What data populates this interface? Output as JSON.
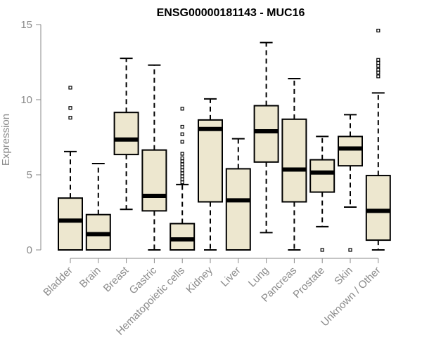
{
  "chart_data": {
    "type": "box",
    "title": "ENSG00000181143 - MUC16",
    "xlabel": "",
    "ylabel": "Expression",
    "ylim": [
      0,
      15
    ],
    "yticks": [
      0,
      5,
      10,
      15
    ],
    "grid": false,
    "box_fill": "#ede7cf",
    "categories": [
      "Bladder",
      "Brain",
      "Breast",
      "Gastric",
      "Hematopoietic cells",
      "Kidney",
      "Liver",
      "Lung",
      "Pancreas",
      "Prostate",
      "Skin",
      "Unknown / Other"
    ],
    "boxes": [
      {
        "min": 0.0,
        "q1": 0.0,
        "median": 1.95,
        "q3": 3.45,
        "max": 6.55,
        "outliers": [
          8.8,
          9.45,
          10.8
        ]
      },
      {
        "min": 0.0,
        "q1": 0.0,
        "median": 1.05,
        "q3": 2.35,
        "max": 5.75,
        "outliers": []
      },
      {
        "min": 2.7,
        "q1": 6.35,
        "median": 7.35,
        "q3": 9.15,
        "max": 12.75,
        "outliers": []
      },
      {
        "min": 0.0,
        "q1": 2.6,
        "median": 3.6,
        "q3": 6.65,
        "max": 12.3,
        "outliers": []
      },
      {
        "min": 0.0,
        "q1": 0.0,
        "median": 0.7,
        "q3": 1.75,
        "max": 4.35,
        "outliers": [
          4.5,
          4.7,
          4.9,
          5.1,
          5.3,
          5.5,
          5.7,
          5.9,
          6.1,
          6.4,
          7.2,
          7.7,
          8.2,
          9.4
        ]
      },
      {
        "min": 0.0,
        "q1": 3.2,
        "median": 8.05,
        "q3": 8.65,
        "max": 10.05,
        "outliers": []
      },
      {
        "min": 0.0,
        "q1": 0.0,
        "median": 3.3,
        "q3": 5.4,
        "max": 7.4,
        "outliers": []
      },
      {
        "min": 1.15,
        "q1": 5.85,
        "median": 7.9,
        "q3": 9.6,
        "max": 13.8,
        "outliers": []
      },
      {
        "min": 0.0,
        "q1": 3.2,
        "median": 5.35,
        "q3": 8.7,
        "max": 11.4,
        "outliers": []
      },
      {
        "min": 1.55,
        "q1": 3.85,
        "median": 5.15,
        "q3": 6.0,
        "max": 7.55,
        "outliers": [
          0.0
        ]
      },
      {
        "min": 2.85,
        "q1": 5.6,
        "median": 6.75,
        "q3": 7.55,
        "max": 9.0,
        "outliers": [
          0.0
        ]
      },
      {
        "min": 0.0,
        "q1": 0.65,
        "median": 2.6,
        "q3": 4.95,
        "max": 10.45,
        "outliers": [
          11.55,
          11.8,
          12.0,
          12.25,
          12.45,
          12.65,
          14.6
        ]
      }
    ]
  }
}
